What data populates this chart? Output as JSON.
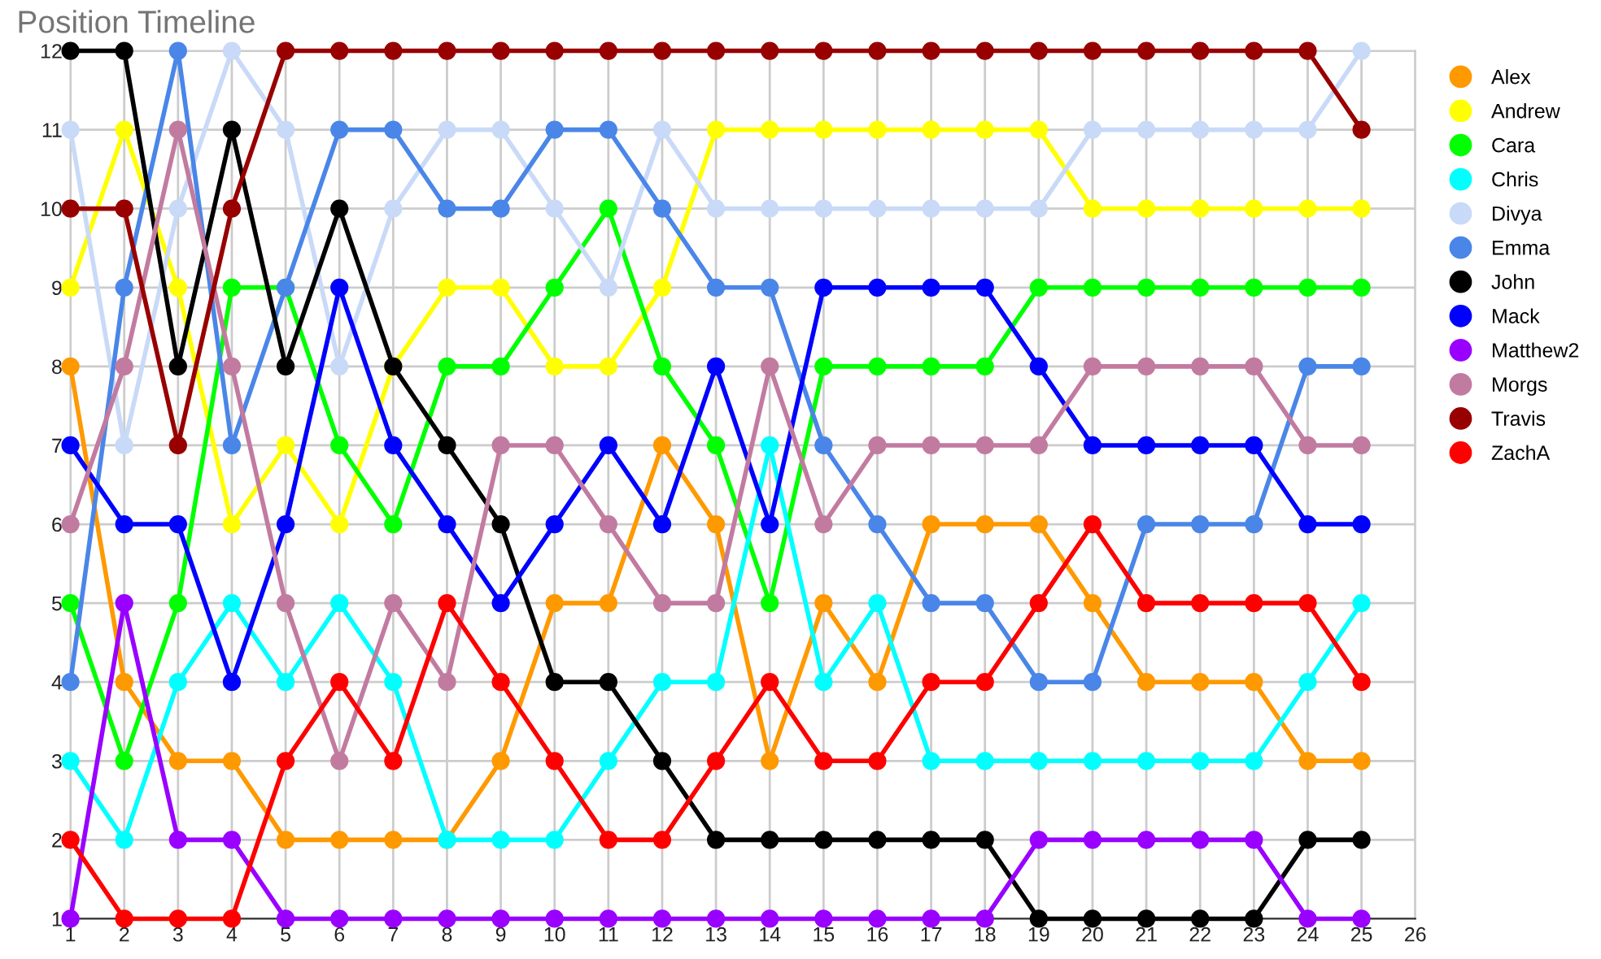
{
  "chart_data": {
    "type": "line",
    "title": "Position Timeline",
    "x": [
      1,
      2,
      3,
      4,
      5,
      6,
      7,
      8,
      9,
      10,
      11,
      12,
      13,
      14,
      15,
      16,
      17,
      18,
      19,
      20,
      21,
      22,
      23,
      24,
      25
    ],
    "series": [
      {
        "name": "Alex",
        "color": "#ff9900",
        "values": [
          8,
          4,
          3,
          3,
          2,
          2,
          2,
          2,
          3,
          5,
          5,
          7,
          6,
          3,
          5,
          4,
          6,
          6,
          6,
          5,
          4,
          4,
          4,
          3,
          3
        ]
      },
      {
        "name": "Andrew",
        "color": "#ffff00",
        "values": [
          9,
          11,
          9,
          6,
          7,
          6,
          8,
          9,
          9,
          8,
          8,
          9,
          11,
          11,
          11,
          11,
          11,
          11,
          11,
          10,
          10,
          10,
          10,
          10,
          10
        ]
      },
      {
        "name": "Cara",
        "color": "#00ff00",
        "values": [
          5,
          3,
          5,
          9,
          9,
          7,
          6,
          8,
          8,
          9,
          10,
          8,
          7,
          5,
          8,
          8,
          8,
          8,
          9,
          9,
          9,
          9,
          9,
          9,
          9
        ]
      },
      {
        "name": "Chris",
        "color": "#00ffff",
        "values": [
          3,
          2,
          4,
          5,
          4,
          5,
          4,
          2,
          2,
          2,
          3,
          4,
          4,
          7,
          4,
          5,
          3,
          3,
          3,
          3,
          3,
          3,
          3,
          4,
          5
        ]
      },
      {
        "name": "Divya",
        "color": "#c9daf8",
        "values": [
          11,
          7,
          10,
          12,
          11,
          8,
          10,
          11,
          11,
          10,
          9,
          11,
          10,
          10,
          10,
          10,
          10,
          10,
          10,
          11,
          11,
          11,
          11,
          11,
          12
        ]
      },
      {
        "name": "Emma",
        "color": "#4a86e8",
        "values": [
          4,
          9,
          12,
          7,
          9,
          11,
          11,
          10,
          10,
          11,
          11,
          10,
          9,
          9,
          7,
          6,
          5,
          5,
          4,
          4,
          6,
          6,
          6,
          8,
          8
        ]
      },
      {
        "name": "John",
        "color": "#000000",
        "values": [
          12,
          12,
          8,
          11,
          8,
          10,
          8,
          7,
          6,
          4,
          4,
          3,
          2,
          2,
          2,
          2,
          2,
          2,
          1,
          1,
          1,
          1,
          1,
          2,
          2
        ]
      },
      {
        "name": "Mack",
        "color": "#0000ff",
        "values": [
          7,
          6,
          6,
          4,
          6,
          9,
          7,
          6,
          5,
          6,
          7,
          6,
          8,
          6,
          9,
          9,
          9,
          9,
          8,
          7,
          7,
          7,
          7,
          6,
          6
        ]
      },
      {
        "name": "Matthew2",
        "color": "#9900ff",
        "values": [
          1,
          5,
          2,
          2,
          1,
          1,
          1,
          1,
          1,
          1,
          1,
          1,
          1,
          1,
          1,
          1,
          1,
          1,
          2,
          2,
          2,
          2,
          2,
          1,
          1
        ]
      },
      {
        "name": "Morgs",
        "color": "#c27ba0",
        "values": [
          6,
          8,
          11,
          8,
          5,
          3,
          5,
          4,
          7,
          7,
          6,
          5,
          5,
          8,
          6,
          7,
          7,
          7,
          7,
          8,
          8,
          8,
          8,
          7,
          7
        ]
      },
      {
        "name": "Travis",
        "color": "#980000",
        "values": [
          10,
          10,
          7,
          10,
          12,
          12,
          12,
          12,
          12,
          12,
          12,
          12,
          12,
          12,
          12,
          12,
          12,
          12,
          12,
          12,
          12,
          12,
          12,
          12,
          11
        ]
      },
      {
        "name": "ZachA",
        "color": "#ff0000",
        "values": [
          2,
          1,
          1,
          1,
          3,
          4,
          3,
          5,
          4,
          3,
          2,
          2,
          3,
          4,
          3,
          3,
          4,
          4,
          5,
          6,
          5,
          5,
          5,
          5,
          4
        ]
      }
    ],
    "xlim": [
      1,
      26
    ],
    "xticks": [
      1,
      2,
      3,
      4,
      5,
      6,
      7,
      8,
      9,
      10,
      11,
      12,
      13,
      14,
      15,
      16,
      17,
      18,
      19,
      20,
      21,
      22,
      23,
      24,
      25,
      26
    ],
    "ylim": [
      1,
      12
    ],
    "yticks": [
      1,
      2,
      3,
      4,
      5,
      6,
      7,
      8,
      9,
      10,
      11,
      12
    ],
    "grid": true,
    "legend": "top right",
    "marker": "circle",
    "line_style": "solid"
  }
}
